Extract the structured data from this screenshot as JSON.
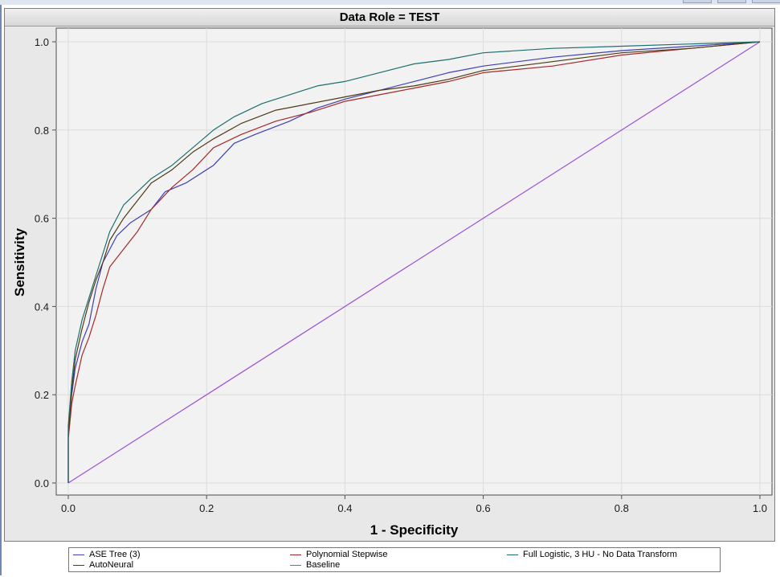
{
  "chart_data": {
    "type": "line",
    "title": "Data Role = TEST",
    "xlabel": "1 - Specificity",
    "ylabel": "Sensitivity",
    "xlim": [
      0,
      1
    ],
    "ylim": [
      0,
      1
    ],
    "xticks": [
      "0.0",
      "0.2",
      "0.4",
      "0.6",
      "0.8",
      "1.0"
    ],
    "yticks": [
      "0.0",
      "0.2",
      "0.4",
      "0.6",
      "0.8",
      "1.0"
    ],
    "grid": true,
    "legend_position": "bottom",
    "series": [
      {
        "name": "ASE Tree (3)",
        "color": "#3f3fb2",
        "points": [
          [
            0,
            0
          ],
          [
            0,
            0.12
          ],
          [
            0.005,
            0.2
          ],
          [
            0.01,
            0.26
          ],
          [
            0.02,
            0.32
          ],
          [
            0.03,
            0.36
          ],
          [
            0.04,
            0.44
          ],
          [
            0.05,
            0.5
          ],
          [
            0.07,
            0.56
          ],
          [
            0.09,
            0.59
          ],
          [
            0.12,
            0.62
          ],
          [
            0.14,
            0.66
          ],
          [
            0.17,
            0.68
          ],
          [
            0.21,
            0.72
          ],
          [
            0.24,
            0.77
          ],
          [
            0.27,
            0.79
          ],
          [
            0.32,
            0.82
          ],
          [
            0.36,
            0.85
          ],
          [
            0.4,
            0.87
          ],
          [
            0.45,
            0.89
          ],
          [
            0.5,
            0.91
          ],
          [
            0.55,
            0.93
          ],
          [
            0.6,
            0.945
          ],
          [
            0.7,
            0.965
          ],
          [
            0.8,
            0.98
          ],
          [
            0.9,
            0.99
          ],
          [
            1,
            1
          ]
        ]
      },
      {
        "name": "Polynomial Stepwise",
        "color": "#a52a2a",
        "points": [
          [
            0,
            0
          ],
          [
            0,
            0.1
          ],
          [
            0.005,
            0.18
          ],
          [
            0.01,
            0.22
          ],
          [
            0.02,
            0.29
          ],
          [
            0.03,
            0.33
          ],
          [
            0.04,
            0.38
          ],
          [
            0.05,
            0.44
          ],
          [
            0.06,
            0.49
          ],
          [
            0.08,
            0.53
          ],
          [
            0.1,
            0.57
          ],
          [
            0.12,
            0.62
          ],
          [
            0.15,
            0.67
          ],
          [
            0.18,
            0.71
          ],
          [
            0.21,
            0.76
          ],
          [
            0.25,
            0.79
          ],
          [
            0.3,
            0.82
          ],
          [
            0.35,
            0.84
          ],
          [
            0.4,
            0.865
          ],
          [
            0.45,
            0.88
          ],
          [
            0.5,
            0.895
          ],
          [
            0.55,
            0.91
          ],
          [
            0.6,
            0.93
          ],
          [
            0.7,
            0.945
          ],
          [
            0.8,
            0.97
          ],
          [
            0.9,
            0.985
          ],
          [
            1,
            1
          ]
        ]
      },
      {
        "name": "Full Logistic, 3 HU - No Data Transform",
        "color": "#1f6e6e",
        "points": [
          [
            0,
            0
          ],
          [
            0,
            0.13
          ],
          [
            0.005,
            0.23
          ],
          [
            0.01,
            0.3
          ],
          [
            0.02,
            0.37
          ],
          [
            0.03,
            0.42
          ],
          [
            0.04,
            0.47
          ],
          [
            0.05,
            0.52
          ],
          [
            0.06,
            0.57
          ],
          [
            0.07,
            0.6
          ],
          [
            0.08,
            0.63
          ],
          [
            0.1,
            0.66
          ],
          [
            0.12,
            0.69
          ],
          [
            0.15,
            0.72
          ],
          [
            0.18,
            0.76
          ],
          [
            0.21,
            0.8
          ],
          [
            0.24,
            0.83
          ],
          [
            0.28,
            0.86
          ],
          [
            0.32,
            0.88
          ],
          [
            0.36,
            0.9
          ],
          [
            0.4,
            0.91
          ],
          [
            0.45,
            0.93
          ],
          [
            0.5,
            0.95
          ],
          [
            0.55,
            0.96
          ],
          [
            0.6,
            0.975
          ],
          [
            0.7,
            0.985
          ],
          [
            0.8,
            0.99
          ],
          [
            0.9,
            0.995
          ],
          [
            1,
            1
          ]
        ]
      },
      {
        "name": "AutoNeural",
        "color": "#4f3a14",
        "points": [
          [
            0,
            0
          ],
          [
            0,
            0.11
          ],
          [
            0.005,
            0.21
          ],
          [
            0.01,
            0.28
          ],
          [
            0.02,
            0.35
          ],
          [
            0.03,
            0.41
          ],
          [
            0.04,
            0.46
          ],
          [
            0.05,
            0.5
          ],
          [
            0.06,
            0.55
          ],
          [
            0.08,
            0.6
          ],
          [
            0.1,
            0.64
          ],
          [
            0.12,
            0.68
          ],
          [
            0.15,
            0.71
          ],
          [
            0.18,
            0.75
          ],
          [
            0.21,
            0.78
          ],
          [
            0.25,
            0.815
          ],
          [
            0.3,
            0.845
          ],
          [
            0.35,
            0.86
          ],
          [
            0.4,
            0.875
          ],
          [
            0.45,
            0.89
          ],
          [
            0.5,
            0.9
          ],
          [
            0.55,
            0.915
          ],
          [
            0.6,
            0.935
          ],
          [
            0.7,
            0.955
          ],
          [
            0.8,
            0.975
          ],
          [
            0.9,
            0.985
          ],
          [
            1,
            1
          ]
        ]
      },
      {
        "name": "Baseline",
        "color": "#9b4fd6",
        "points": [
          [
            0,
            0
          ],
          [
            1,
            1
          ]
        ]
      }
    ]
  }
}
